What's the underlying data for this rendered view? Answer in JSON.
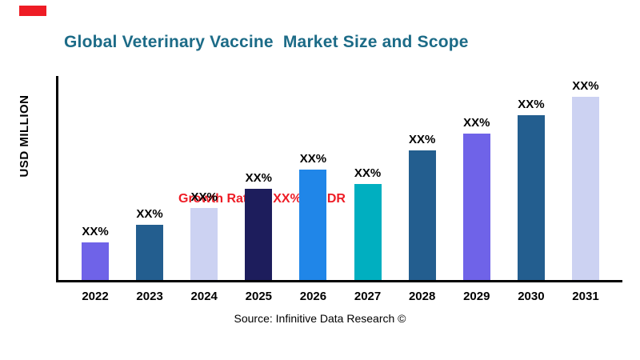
{
  "page": {
    "title": "Global Veterinary Vaccine  Market Size and Scope",
    "y_axis_label": "USD MILLION",
    "growth_note": "Growth Rate at XX% by IDR",
    "source": "Source: Infinitive Data Research ©"
  },
  "colors": {
    "title": "#1c6b87",
    "accent_red": "#ee1c25",
    "axis": "#000000"
  },
  "chart_data": {
    "type": "bar",
    "title": "Global Veterinary Vaccine  Market Size and Scope",
    "categories": [
      "2022",
      "2023",
      "2024",
      "2025",
      "2026",
      "2027",
      "2028",
      "2029",
      "2030",
      "2031"
    ],
    "values": [
      47,
      69,
      90,
      114,
      138,
      120,
      162,
      183,
      206,
      229
    ],
    "bar_labels": [
      "XX%",
      "XX%",
      "XX%",
      "XX%",
      "XX%",
      "XX%",
      "XX%",
      "XX%",
      "XX%",
      "XX%"
    ],
    "bar_colors": [
      "#6f63e8",
      "#235e8f",
      "#ccd2f2",
      "#1d1d5c",
      "#2086e8",
      "#00afc0",
      "#235e8f",
      "#6f63e8",
      "#235e8f",
      "#ccd2f2"
    ],
    "xlabel": "",
    "ylabel": "USD MILLION",
    "ylim": [
      0,
      255
    ],
    "grid": false,
    "legend": false,
    "annotation": "Growth Rate at XX% by IDR"
  }
}
